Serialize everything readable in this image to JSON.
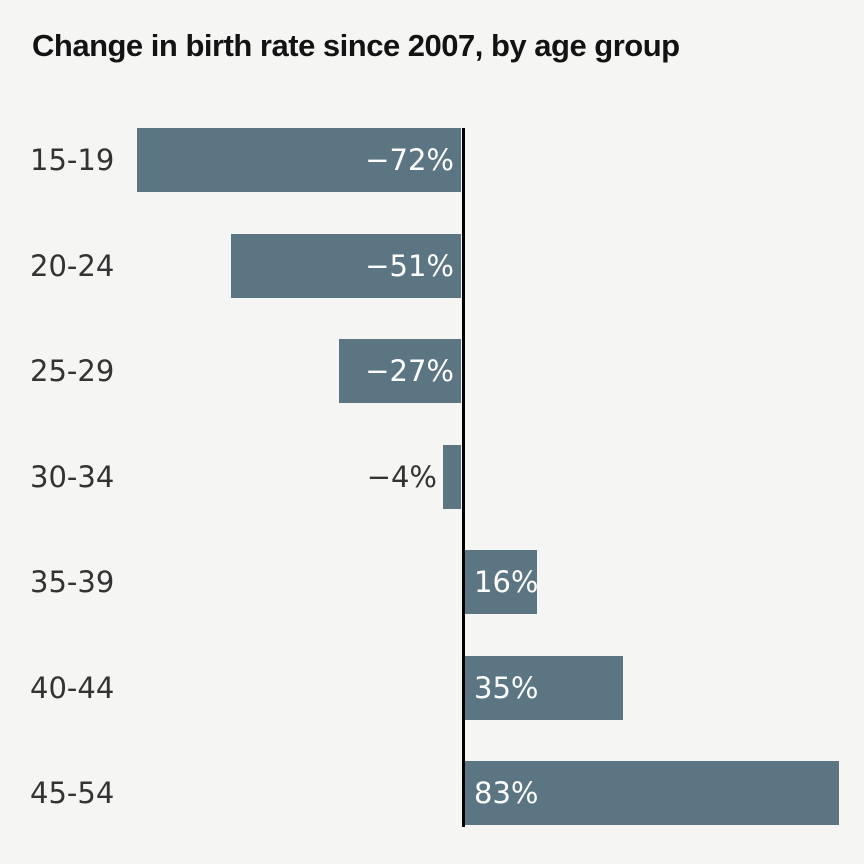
{
  "chart_data": {
    "type": "bar",
    "orientation": "horizontal",
    "title": "Change in birth rate since 2007, by age group",
    "categories": [
      "15-19",
      "20-24",
      "25-29",
      "30-34",
      "35-39",
      "40-44",
      "45-54"
    ],
    "values": [
      -72,
      -51,
      -27,
      -4,
      16,
      35,
      83
    ],
    "value_labels": [
      "−72%",
      "−51%",
      "−27%",
      "−4%",
      "16%",
      "35%",
      "83%"
    ],
    "xlabel": "",
    "ylabel": "",
    "xlim": [
      -72,
      83
    ],
    "baseline_value": 0,
    "grid": false,
    "legend": false,
    "value_label_inside_threshold": 10,
    "colors": {
      "bar": "#5b7583",
      "background": "#f5f5f3",
      "title_text": "#131313",
      "category_text": "#333333",
      "value_text_inside": "#ffffff",
      "value_text_outside": "#333333",
      "axis_line": "#000000"
    }
  }
}
